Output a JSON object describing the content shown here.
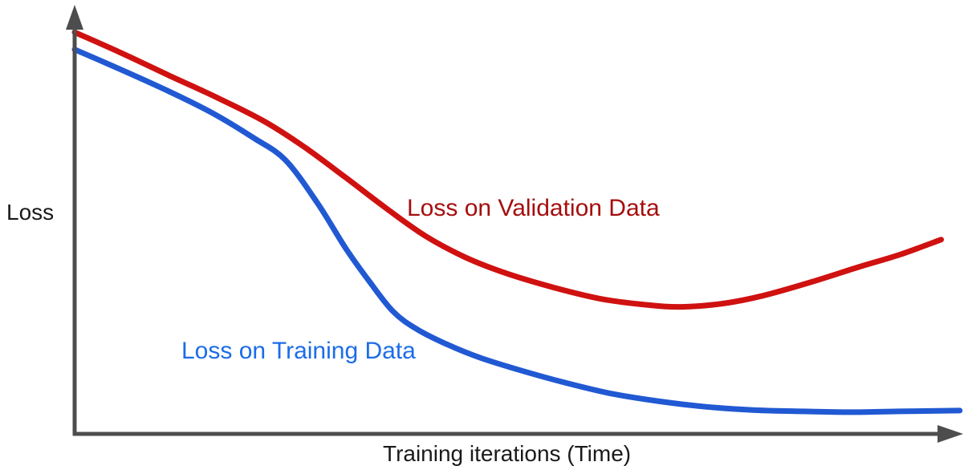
{
  "figure": {
    "background_color": "#ffffff",
    "axis_color": "#4d4d4d",
    "y_axis_label": "Loss",
    "x_axis_label": "Training iterations (Time)"
  },
  "chart_data": {
    "type": "line",
    "title": "",
    "xlabel": "Training iterations (Time)",
    "ylabel": "Loss",
    "grid": false,
    "legend_position": "inline annotations next to curves",
    "axes_numeric": false,
    "units_note": "Conceptual sketch: no tick marks or numeric scales shown; x and y given as fractions of axis length (y: 0 = bottom axis, 1 = top arrow)",
    "xlim": [
      0,
      1
    ],
    "ylim": [
      0,
      1
    ],
    "series": [
      {
        "name": "Loss on Validation Data",
        "color": "#cf1110",
        "label_color": "#a50e0e",
        "x": [
          0,
          0.052,
          0.106,
          0.16,
          0.214,
          0.26,
          0.305,
          0.35,
          0.395,
          0.44,
          0.486,
          0.54,
          0.594,
          0.648,
          0.684,
          0.73,
          0.775,
          0.829,
          0.883,
          0.929,
          0.976
        ],
        "y": [
          0.98,
          0.93,
          0.875,
          0.821,
          0.762,
          0.698,
          0.626,
          0.552,
          0.483,
          0.431,
          0.392,
          0.357,
          0.329,
          0.314,
          0.31,
          0.318,
          0.337,
          0.37,
          0.407,
          0.437,
          0.474
        ]
      },
      {
        "name": "Loss on Training Data",
        "color": "#2159d3",
        "label_color": "#1c6ce8",
        "x": [
          0,
          0.052,
          0.106,
          0.156,
          0.201,
          0.237,
          0.273,
          0.305,
          0.332,
          0.359,
          0.386,
          0.422,
          0.458,
          0.504,
          0.549,
          0.603,
          0.657,
          0.712,
          0.766,
          0.82,
          0.874,
          0.929,
          0.997
        ],
        "y": [
          0.938,
          0.889,
          0.836,
          0.782,
          0.723,
          0.669,
          0.565,
          0.454,
          0.372,
          0.298,
          0.255,
          0.216,
          0.185,
          0.154,
          0.127,
          0.099,
          0.08,
          0.066,
          0.058,
          0.055,
          0.053,
          0.055,
          0.057
        ]
      }
    ],
    "annotations": [
      {
        "text": "Loss on Validation Data",
        "series": "Loss on Validation Data",
        "placement": "right of curve mid-descent"
      },
      {
        "text": "Loss on Training Data",
        "series": "Loss on Training Data",
        "placement": "left of curve steep descent"
      }
    ]
  },
  "labels": {
    "validation": "Loss on Validation Data",
    "training": "Loss on Training Data"
  }
}
